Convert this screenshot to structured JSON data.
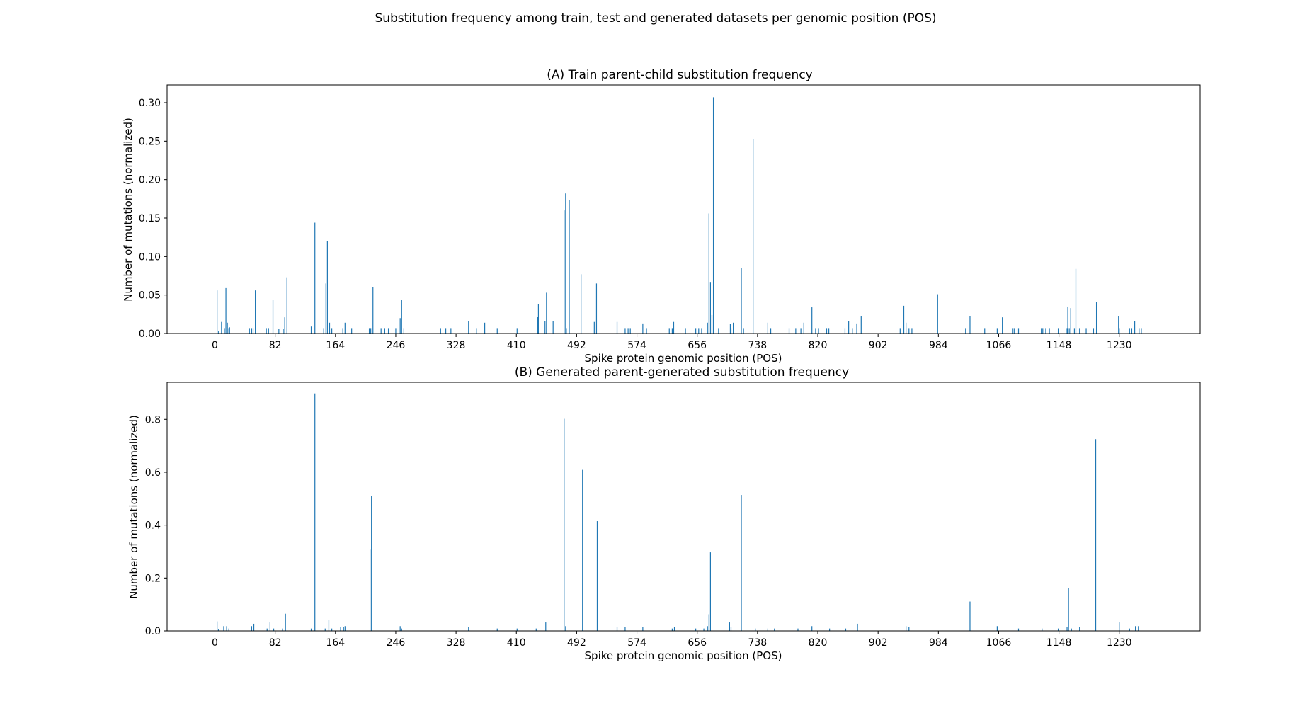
{
  "figure": {
    "suptitle": "Substitution frequency among train, test and generated datasets per genomic position (POS)"
  },
  "colors": {
    "bar": "#1f77b4"
  },
  "chart_data": [
    {
      "type": "bar",
      "title": "(A) Train parent-child substitution frequency",
      "xlabel": "Spike protein genomic position (POS)",
      "ylabel": "Number of mutations (normalized)",
      "xlim": [
        -65,
        1340
      ],
      "ylim": [
        0,
        0.323
      ],
      "xticks": [
        0,
        82,
        164,
        246,
        328,
        410,
        492,
        574,
        656,
        738,
        820,
        902,
        984,
        1066,
        1148,
        1230
      ],
      "yticks": [
        0.0,
        0.05,
        0.1,
        0.15,
        0.2,
        0.25,
        0.3
      ],
      "ytick_labels": [
        "0.00",
        "0.05",
        "0.10",
        "0.15",
        "0.20",
        "0.25",
        "0.30"
      ],
      "grid": false,
      "x": [
        3,
        5,
        9,
        13,
        15,
        17,
        19,
        20,
        47,
        50,
        52,
        55,
        70,
        73,
        79,
        87,
        93,
        95,
        98,
        131,
        136,
        148,
        151,
        153,
        156,
        159,
        174,
        177,
        186,
        210,
        212,
        215,
        226,
        231,
        236,
        246,
        252,
        254,
        257,
        307,
        314,
        321,
        345,
        356,
        367,
        384,
        411,
        439,
        440,
        449,
        451,
        460,
        475,
        477,
        478,
        482,
        498,
        516,
        519,
        547,
        558,
        562,
        565,
        582,
        587,
        618,
        622,
        624,
        640,
        654,
        658,
        662,
        670,
        672,
        674,
        676,
        678,
        685,
        701,
        702,
        705,
        716,
        719,
        732,
        752,
        756,
        781,
        790,
        797,
        801,
        812,
        817,
        821,
        832,
        835,
        857,
        862,
        867,
        873,
        879,
        932,
        937,
        940,
        944,
        948,
        983,
        1021,
        1027,
        1047,
        1064,
        1071,
        1085,
        1087,
        1093,
        1124,
        1126,
        1130,
        1135,
        1147,
        1159,
        1160,
        1162,
        1164,
        1169,
        1171,
        1176,
        1185,
        1195,
        1199,
        1229,
        1230,
        1244,
        1247,
        1251,
        1257,
        1260
      ],
      "values": [
        0.056,
        0.003,
        0.015,
        0.007,
        0.059,
        0.014,
        0.007,
        0.008,
        0.007,
        0.007,
        0.007,
        0.056,
        0.007,
        0.007,
        0.044,
        0.006,
        0.006,
        0.021,
        0.073,
        0.009,
        0.144,
        0.007,
        0.065,
        0.12,
        0.014,
        0.007,
        0.007,
        0.014,
        0.007,
        0.007,
        0.007,
        0.06,
        0.007,
        0.007,
        0.007,
        0.007,
        0.02,
        0.044,
        0.007,
        0.007,
        0.007,
        0.007,
        0.016,
        0.007,
        0.014,
        0.007,
        0.007,
        0.022,
        0.038,
        0.016,
        0.053,
        0.016,
        0.16,
        0.182,
        0.007,
        0.173,
        0.077,
        0.015,
        0.065,
        0.015,
        0.007,
        0.007,
        0.007,
        0.013,
        0.007,
        0.007,
        0.007,
        0.015,
        0.007,
        0.007,
        0.007,
        0.007,
        0.014,
        0.156,
        0.067,
        0.024,
        0.307,
        0.007,
        0.012,
        0.007,
        0.014,
        0.085,
        0.007,
        0.253,
        0.014,
        0.007,
        0.007,
        0.007,
        0.007,
        0.014,
        0.034,
        0.007,
        0.007,
        0.007,
        0.007,
        0.007,
        0.016,
        0.007,
        0.013,
        0.023,
        0.007,
        0.036,
        0.014,
        0.007,
        0.007,
        0.051,
        0.007,
        0.023,
        0.007,
        0.007,
        0.021,
        0.007,
        0.007,
        0.007,
        0.007,
        0.007,
        0.007,
        0.007,
        0.007,
        0.007,
        0.035,
        0.007,
        0.033,
        0.007,
        0.084,
        0.007,
        0.007,
        0.007,
        0.041,
        0.023,
        0.007,
        0.007,
        0.007,
        0.016,
        0.007,
        0.007
      ]
    },
    {
      "type": "bar",
      "title": "(B) Generated parent-generated substitution frequency",
      "xlabel": "Spike protein genomic position (POS)",
      "ylabel": "Number of mutations (normalized)",
      "xlim": [
        -65,
        1340
      ],
      "ylim": [
        0,
        0.94
      ],
      "xticks": [
        0,
        82,
        164,
        246,
        328,
        410,
        492,
        574,
        656,
        738,
        820,
        902,
        984,
        1066,
        1148,
        1230
      ],
      "yticks": [
        0.0,
        0.2,
        0.4,
        0.6,
        0.8
      ],
      "ytick_labels": [
        "0.0",
        "0.2",
        "0.4",
        "0.6",
        "0.8"
      ],
      "grid": false,
      "x": [
        3,
        5,
        12,
        16,
        19,
        50,
        53,
        71,
        75,
        80,
        92,
        96,
        131,
        136,
        150,
        155,
        159,
        171,
        175,
        177,
        211,
        213,
        252,
        254,
        345,
        384,
        411,
        437,
        450,
        475,
        477,
        500,
        520,
        547,
        558,
        582,
        622,
        625,
        654,
        665,
        670,
        672,
        674,
        700,
        702,
        716,
        735,
        752,
        761,
        793,
        812,
        836,
        858,
        874,
        940,
        944,
        1027,
        1064,
        1093,
        1125,
        1147,
        1159,
        1161,
        1165,
        1176,
        1198,
        1230,
        1244,
        1252,
        1256
      ],
      "values": [
        0.036,
        0.007,
        0.018,
        0.018,
        0.009,
        0.018,
        0.027,
        0.009,
        0.032,
        0.009,
        0.009,
        0.065,
        0.009,
        0.898,
        0.009,
        0.041,
        0.009,
        0.014,
        0.014,
        0.018,
        0.307,
        0.511,
        0.018,
        0.009,
        0.014,
        0.009,
        0.009,
        0.009,
        0.032,
        0.802,
        0.018,
        0.609,
        0.415,
        0.014,
        0.014,
        0.014,
        0.009,
        0.014,
        0.009,
        0.009,
        0.018,
        0.063,
        0.297,
        0.032,
        0.014,
        0.514,
        0.009,
        0.009,
        0.009,
        0.009,
        0.018,
        0.009,
        0.009,
        0.027,
        0.018,
        0.014,
        0.111,
        0.018,
        0.009,
        0.009,
        0.009,
        0.014,
        0.163,
        0.009,
        0.014,
        0.725,
        0.032,
        0.009,
        0.018,
        0.018
      ]
    }
  ]
}
